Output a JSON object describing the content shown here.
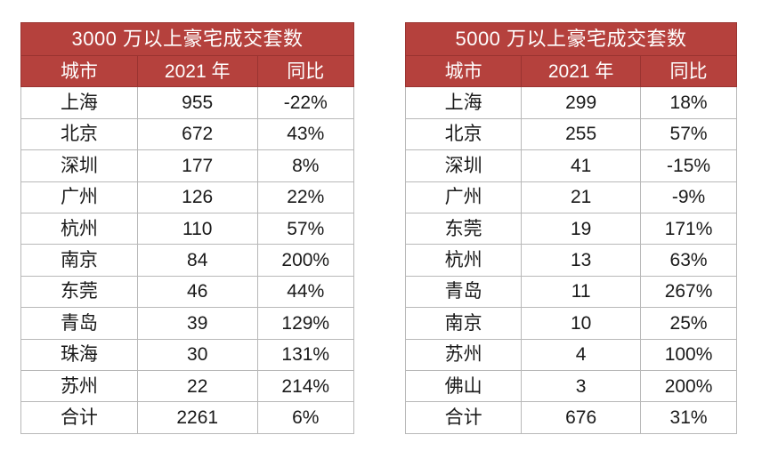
{
  "tables": [
    {
      "title": "3000 万以上豪宅成交套数",
      "headers": [
        "城市",
        "2021 年",
        "同比"
      ],
      "rows": [
        [
          "上海",
          "955",
          "-22%"
        ],
        [
          "北京",
          "672",
          "43%"
        ],
        [
          "深圳",
          "177",
          "8%"
        ],
        [
          "广州",
          "126",
          "22%"
        ],
        [
          "杭州",
          "110",
          "57%"
        ],
        [
          "南京",
          "84",
          "200%"
        ],
        [
          "东莞",
          "46",
          "44%"
        ],
        [
          "青岛",
          "39",
          "129%"
        ],
        [
          "珠海",
          "30",
          "131%"
        ],
        [
          "苏州",
          "22",
          "214%"
        ]
      ],
      "total": [
        "合计",
        "2261",
        "6%"
      ]
    },
    {
      "title": "5000 万以上豪宅成交套数",
      "headers": [
        "城市",
        "2021 年",
        "同比"
      ],
      "rows": [
        [
          "上海",
          "299",
          "18%"
        ],
        [
          "北京",
          "255",
          "57%"
        ],
        [
          "深圳",
          "41",
          "-15%"
        ],
        [
          "广州",
          "21",
          "-9%"
        ],
        [
          "东莞",
          "19",
          "171%"
        ],
        [
          "杭州",
          "13",
          "63%"
        ],
        [
          "青岛",
          "11",
          "267%"
        ],
        [
          "南京",
          "10",
          "25%"
        ],
        [
          "苏州",
          "4",
          "100%"
        ],
        [
          "佛山",
          "3",
          "200%"
        ]
      ],
      "total": [
        "合计",
        "676",
        "31%"
      ]
    }
  ],
  "colors": {
    "header_bg": "#b5413d",
    "header_text": "#ffffff",
    "border": "#b8b8b8"
  }
}
